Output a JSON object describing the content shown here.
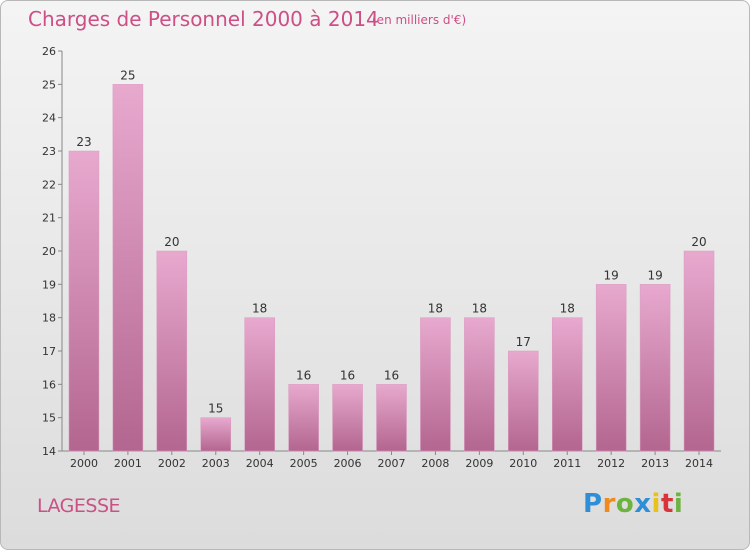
{
  "title": "Charges de Personnel 2000 à 2014",
  "subtitle": "(en milliers d'€)",
  "location": "LAGESSE",
  "logo": {
    "letters": [
      "P",
      "r",
      "o",
      "x",
      "i",
      "t",
      "i"
    ]
  },
  "colors": {
    "accent": "#cc4f86",
    "bar_top": "#e8a9cf",
    "bar_bottom": "#b3668f"
  },
  "chart_data": {
    "type": "bar",
    "categories": [
      "2000",
      "2001",
      "2002",
      "2003",
      "2004",
      "2005",
      "2006",
      "2007",
      "2008",
      "2009",
      "2010",
      "2011",
      "2012",
      "2013",
      "2014"
    ],
    "values": [
      23,
      25,
      20,
      15,
      18,
      16,
      16,
      16,
      18,
      18,
      17,
      18,
      19,
      19,
      20
    ],
    "ylim": [
      14,
      26
    ],
    "yticks": [
      14,
      15,
      16,
      17,
      18,
      19,
      20,
      21,
      22,
      23,
      24,
      25,
      26
    ],
    "grid": false,
    "legend": "none",
    "data_labels": true
  }
}
